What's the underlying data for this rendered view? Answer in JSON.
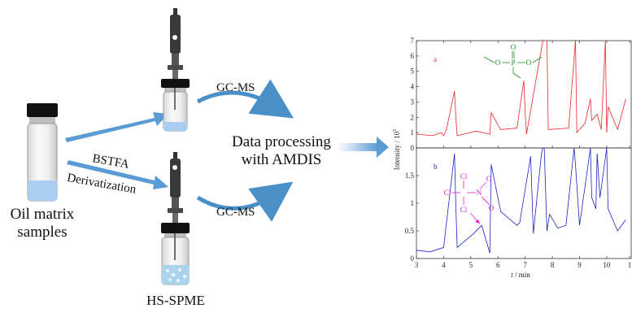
{
  "left": {
    "sample_label_line1": "Oil matrix",
    "sample_label_line2": "samples",
    "reagent_line1": "BSTFA",
    "reagent_line2": "Derivatization",
    "hs_spme": "HS-SPME"
  },
  "middle": {
    "gcms_top": "GC-MS",
    "gcms_bottom": "GC-MS",
    "process_line1": "Data processing",
    "process_line2": "with AMDIS"
  },
  "colors": {
    "arrow_blue": "#5b9bd5",
    "trace_a": "#e8262a",
    "trace_b": "#1b22c4",
    "structure_a": "#1f8f1f",
    "structure_b": "#e020c8",
    "liquid": "#a9cef0",
    "cap": "#111111"
  },
  "chart_data": [
    {
      "type": "line",
      "panel_label": "a",
      "ylim": [
        0,
        7
      ],
      "yticks": [
        "0",
        "1",
        "2",
        "3",
        "4",
        "5",
        "6",
        "7"
      ],
      "x": [
        3.0,
        3.6,
        3.9,
        4.0,
        4.1,
        4.4,
        4.45,
        4.5,
        5.2,
        5.7,
        5.75,
        6.1,
        6.7,
        6.95,
        7.0,
        7.05,
        7.65,
        7.7,
        7.8,
        7.85,
        8.6,
        8.85,
        8.9,
        9.2,
        9.4,
        9.45,
        9.65,
        9.8,
        9.95,
        10.0,
        10.05,
        10.4,
        10.7
      ],
      "y": [
        0.9,
        0.8,
        1.0,
        0.8,
        1.2,
        3.7,
        1.9,
        0.8,
        1.1,
        0.9,
        2.3,
        1.2,
        1.3,
        4.4,
        2.3,
        0.9,
        7.0,
        7.0,
        7.0,
        1.2,
        1.3,
        7.0,
        1.0,
        1.6,
        3.2,
        1.8,
        2.2,
        1.2,
        7.0,
        1.0,
        2.7,
        1.2,
        3.2
      ]
    },
    {
      "type": "line",
      "panel_label": "b",
      "ylim": [
        0,
        2.0
      ],
      "yticks": [
        "0",
        "0.5",
        "1",
        "1.5",
        "2"
      ],
      "x": [
        3.0,
        3.5,
        4.0,
        4.4,
        4.45,
        4.5,
        5.1,
        5.4,
        5.7,
        5.75,
        6.1,
        6.7,
        6.8,
        7.2,
        7.3,
        7.6,
        7.65,
        7.7,
        7.8,
        7.9,
        8.2,
        8.5,
        8.8,
        8.85,
        9.0,
        9.4,
        9.45,
        9.6,
        9.65,
        9.75,
        10.0,
        10.05,
        10.4,
        10.7
      ],
      "y": [
        0.15,
        0.12,
        0.2,
        1.9,
        0.9,
        0.2,
        0.45,
        0.6,
        0.1,
        1.7,
        0.85,
        0.6,
        0.65,
        1.85,
        0.45,
        1.9,
        2.0,
        2.0,
        0.5,
        0.8,
        0.55,
        0.6,
        2.0,
        1.7,
        0.6,
        2.0,
        1.1,
        0.9,
        1.9,
        1.1,
        2.0,
        0.9,
        0.5,
        0.7
      ]
    }
  ],
  "axes": {
    "xticks": [
      "3",
      "4",
      "5",
      "6",
      "7",
      "8",
      "9",
      "10",
      "1"
    ],
    "xlim": [
      3,
      10.9
    ],
    "x_label_t": "t",
    "x_label_rest": " / min",
    "y_label": "Intensity / 10",
    "y_label_exp": "5",
    "structure_a_atoms": [
      "O",
      "P",
      "O",
      "O"
    ],
    "structure_b_atoms": [
      "Cl",
      "Cl",
      "Cl",
      "N",
      "O",
      "O"
    ]
  }
}
